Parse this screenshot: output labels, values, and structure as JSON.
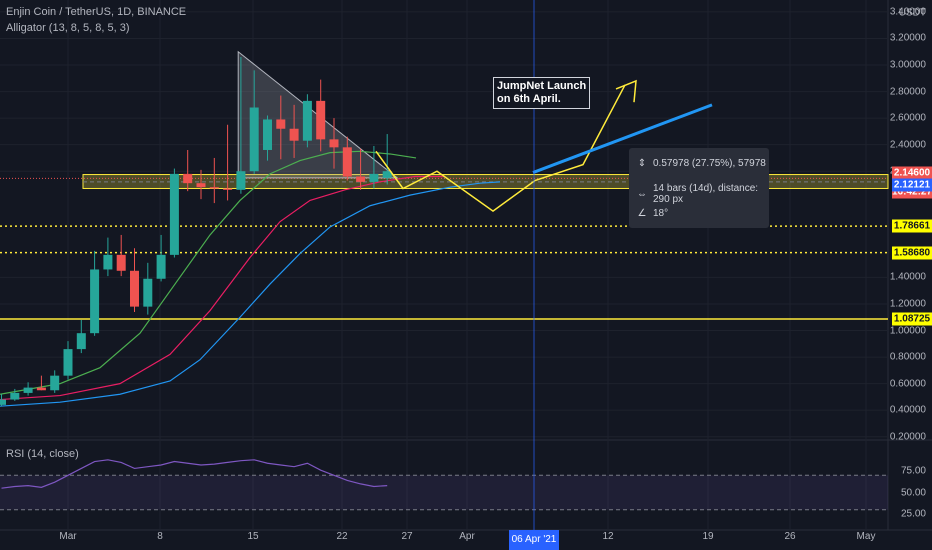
{
  "chart_title": "Enjin Coin / TetherUS, 1D, BINANCE",
  "indicator_label": "Alligator (13, 8, 5, 8, 5, 3)",
  "rsi_label": "RSI (14, close)",
  "currency": "USDT",
  "annotation": {
    "line1": "JumpNet Launch",
    "line2": "on 6th April."
  },
  "tooltip": {
    "price_change": "0.57978 (27.75%), 57978",
    "bars_info": "14 bars (14d), distance: 290 px",
    "angle": "18°"
  },
  "price_axis_labels": [
    "3.40000",
    "3.20000",
    "3.00000",
    "2.80000",
    "2.60000",
    "2.40000",
    "2.20000",
    "1.40000",
    "1.20000",
    "1.00000",
    "0.80000",
    "0.60000",
    "0.40000",
    "0.20000"
  ],
  "price_tags": [
    {
      "text": "2.14600",
      "color": "#ef5350"
    },
    {
      "text": "16:42:27",
      "color": "#ef5350"
    },
    {
      "text": "2.12121",
      "color": "#2962ff"
    },
    {
      "text": "1.78661",
      "color": "#ffff00"
    },
    {
      "text": "1.58680",
      "color": "#ffff00"
    },
    {
      "text": "1.08725",
      "color": "#ffff00"
    }
  ],
  "rsi_axis_labels": [
    "75.00",
    "50.00",
    "25.00"
  ],
  "time_labels": [
    "Mar",
    "8",
    "15",
    "22",
    "27",
    "Apr",
    "12",
    "19",
    "26",
    "May"
  ],
  "date_marker": "06 Apr '21",
  "colors": {
    "up": "#26a69a",
    "down": "#ef5350",
    "jaw": "#2196f3",
    "teeth": "#e91e63",
    "lips": "#4caf50",
    "drawing": "#ffeb3b",
    "arrow": "#2196f3",
    "rsi": "#7e57c2"
  },
  "chart_data": {
    "type": "candlestick",
    "x": [
      "Feb 24",
      "Feb 25",
      "Feb 26",
      "Feb 27",
      "Feb 28",
      "Mar 1",
      "Mar 2",
      "Mar 3",
      "Mar 4",
      "Mar 5",
      "Mar 6",
      "Mar 7",
      "Mar 8",
      "Mar 9",
      "Mar 10",
      "Mar 11",
      "Mar 12",
      "Mar 13",
      "Mar 14",
      "Mar 15",
      "Mar 16",
      "Mar 17",
      "Mar 18",
      "Mar 19",
      "Mar 20",
      "Mar 21",
      "Mar 22",
      "Mar 23",
      "Mar 24",
      "Mar 25"
    ],
    "open": [
      0.44,
      0.48,
      0.53,
      0.57,
      0.55,
      0.66,
      0.86,
      0.98,
      1.46,
      1.57,
      1.45,
      1.18,
      1.39,
      1.57,
      2.18,
      2.11,
      2.08,
      2.07,
      2.06,
      2.2,
      2.36,
      2.59,
      2.52,
      2.43,
      2.73,
      2.44,
      2.38,
      2.16,
      2.12,
      2.15
    ],
    "high": [
      0.52,
      0.56,
      0.61,
      0.66,
      0.7,
      0.92,
      1.08,
      1.6,
      1.7,
      1.72,
      1.62,
      1.51,
      1.72,
      2.22,
      2.36,
      2.21,
      2.3,
      2.55,
      3.06,
      2.96,
      2.62,
      2.77,
      2.7,
      2.78,
      2.89,
      2.6,
      2.46,
      2.37,
      2.39,
      2.48
    ],
    "low": [
      0.43,
      0.47,
      0.51,
      0.55,
      0.53,
      0.63,
      0.83,
      0.96,
      1.41,
      1.41,
      1.14,
      1.12,
      1.37,
      1.55,
      2.05,
      1.99,
      1.96,
      1.98,
      2.03,
      2.18,
      2.28,
      2.29,
      2.3,
      2.38,
      2.35,
      2.22,
      2.13,
      2.06,
      2.07,
      2.1
    ],
    "close": [
      0.48,
      0.53,
      0.57,
      0.55,
      0.66,
      0.86,
      0.98,
      1.46,
      1.57,
      1.45,
      1.18,
      1.39,
      1.57,
      2.18,
      2.11,
      2.08,
      2.07,
      2.06,
      2.2,
      2.68,
      2.59,
      2.52,
      2.43,
      2.73,
      2.44,
      2.38,
      2.16,
      2.12,
      2.18,
      2.2
    ],
    "ylim": [
      0.1,
      3.5
    ],
    "levels": [
      2.12121,
      1.78661,
      1.5868,
      1.08725
    ],
    "rsi": [
      55,
      57,
      58,
      56,
      62,
      70,
      78,
      86,
      88,
      85,
      78,
      80,
      82,
      86,
      84,
      82,
      83,
      85,
      87,
      88,
      84,
      82,
      80,
      84,
      76,
      70,
      64,
      60,
      57,
      58
    ]
  }
}
